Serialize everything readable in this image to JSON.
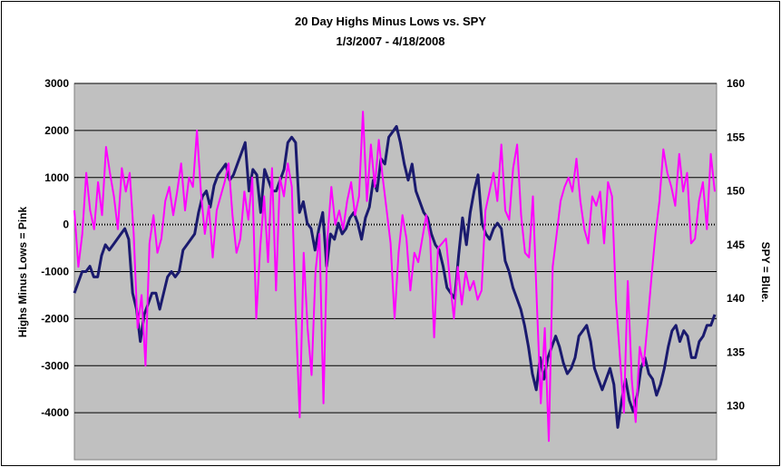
{
  "chart_data": {
    "type": "line",
    "title": "20 Day Highs Minus Lows vs. SPY",
    "subtitle": "1/3/2007  - 4/18/2008",
    "ylabel": "Highs Minus Lows = Pink",
    "y2label": "SPY = Blue.",
    "ylim": [
      -5000,
      3000
    ],
    "y2lim": [
      125,
      160
    ],
    "yticks": [
      "3000",
      "2000",
      "1000",
      "0",
      "-1000",
      "-2000",
      "-3000",
      "-4000"
    ],
    "y2ticks": [
      "160",
      "155",
      "150",
      "145",
      "140",
      "135",
      "130"
    ],
    "grid": true,
    "plot_background": "#c0c0c0",
    "series": [
      {
        "color": "#ff00ff",
        "axis": "left",
        "values": [
          300,
          -900,
          -200,
          1100,
          300,
          -100,
          900,
          200,
          1650,
          1100,
          600,
          -100,
          1200,
          700,
          1100,
          -200,
          -2200,
          -1500,
          -3000,
          -400,
          200,
          -600,
          -300,
          500,
          800,
          200,
          700,
          1300,
          300,
          1000,
          800,
          2000,
          700,
          -200,
          400,
          -700,
          300,
          600,
          900,
          1300,
          200,
          -600,
          -300,
          700,
          100,
          1000,
          -2000,
          -500,
          600,
          -800,
          1200,
          -1400,
          1000,
          600,
          1300,
          800,
          -1900,
          -4100,
          -600,
          -2200,
          -3200,
          -1000,
          -200,
          -3800,
          -300,
          800,
          0,
          300,
          -100,
          500,
          900,
          200,
          600,
          2400,
          500,
          1700,
          800,
          1800,
          1000,
          300,
          -400,
          -2000,
          -600,
          200,
          -300,
          -1400,
          -600,
          -800,
          -300,
          200,
          -300,
          -2400,
          -500,
          -400,
          -300,
          -1200,
          -2000,
          -900,
          -1700,
          -1000,
          -1400,
          -1200,
          -1600,
          -1400,
          300,
          700,
          1100,
          500,
          1700,
          300,
          100,
          1200,
          1700,
          200,
          -600,
          -700,
          600,
          -1700,
          -3800,
          -2200,
          -4600,
          -900,
          -200,
          500,
          800,
          1000,
          700,
          1400,
          500,
          -100,
          -400,
          600,
          400,
          700,
          -400,
          900,
          600,
          -1600,
          -2800,
          -4000,
          -1200,
          -3300,
          -4200,
          -2600,
          -3000,
          -2100,
          -1100,
          -200,
          500,
          1600,
          1100,
          800,
          400,
          1500,
          700,
          1100,
          -400,
          -300,
          500,
          900,
          -100,
          1500,
          700
        ]
      },
      {
        "color": "#1a1a6e",
        "axis": "right",
        "values": [
          140.5,
          141.5,
          142.5,
          142.5,
          143.0,
          142.0,
          142.0,
          144.0,
          145.0,
          144.5,
          145.0,
          145.5,
          146.0,
          146.5,
          145.5,
          140.5,
          139.0,
          136.0,
          138.5,
          139.5,
          140.5,
          140.5,
          139.0,
          140.5,
          142.0,
          142.5,
          142.0,
          142.5,
          144.5,
          145.0,
          145.5,
          146.0,
          148.0,
          149.5,
          150.0,
          148.5,
          150.5,
          151.5,
          152.0,
          152.5,
          151.0,
          151.5,
          152.5,
          153.5,
          154.5,
          150.0,
          152.0,
          151.5,
          148.0,
          152.0,
          151.0,
          150.0,
          150.0,
          151.0,
          152.0,
          154.5,
          155.0,
          154.5,
          148.0,
          149.0,
          147.0,
          146.5,
          144.5,
          146.5,
          148.0,
          143.0,
          146.0,
          145.5,
          147.0,
          146.0,
          146.5,
          147.5,
          148.0,
          147.0,
          145.5,
          147.5,
          148.5,
          151.0,
          150.0,
          153.0,
          152.5,
          155.0,
          155.5,
          156.0,
          154.5,
          152.5,
          151.0,
          152.5,
          150.0,
          149.0,
          148.0,
          147.5,
          146.0,
          145.0,
          144.5,
          143.0,
          141.0,
          140.5,
          140.0,
          144.0,
          147.5,
          145.0,
          148.0,
          150.0,
          151.5,
          147.0,
          146.0,
          145.5,
          146.5,
          147.0,
          146.5,
          143.5,
          142.5,
          141.0,
          140.0,
          139.0,
          137.5,
          135.5,
          133.0,
          131.5,
          134.5,
          132.5,
          134.5,
          135.5,
          136.5,
          135.5,
          134.0,
          133.0,
          133.5,
          134.5,
          136.5,
          137.0,
          137.5,
          136.0,
          133.5,
          132.5,
          131.5,
          132.5,
          133.5,
          132.0,
          128.0,
          130.5,
          132.5,
          130.5,
          129.5,
          131.0,
          133.5,
          134.5,
          133.0,
          132.5,
          131.0,
          132.0,
          133.5,
          135.5,
          137.0,
          137.5,
          136.0,
          137.0,
          136.5,
          134.5,
          134.5,
          136.0,
          136.5,
          137.5,
          137.5,
          138.5
        ]
      }
    ]
  }
}
